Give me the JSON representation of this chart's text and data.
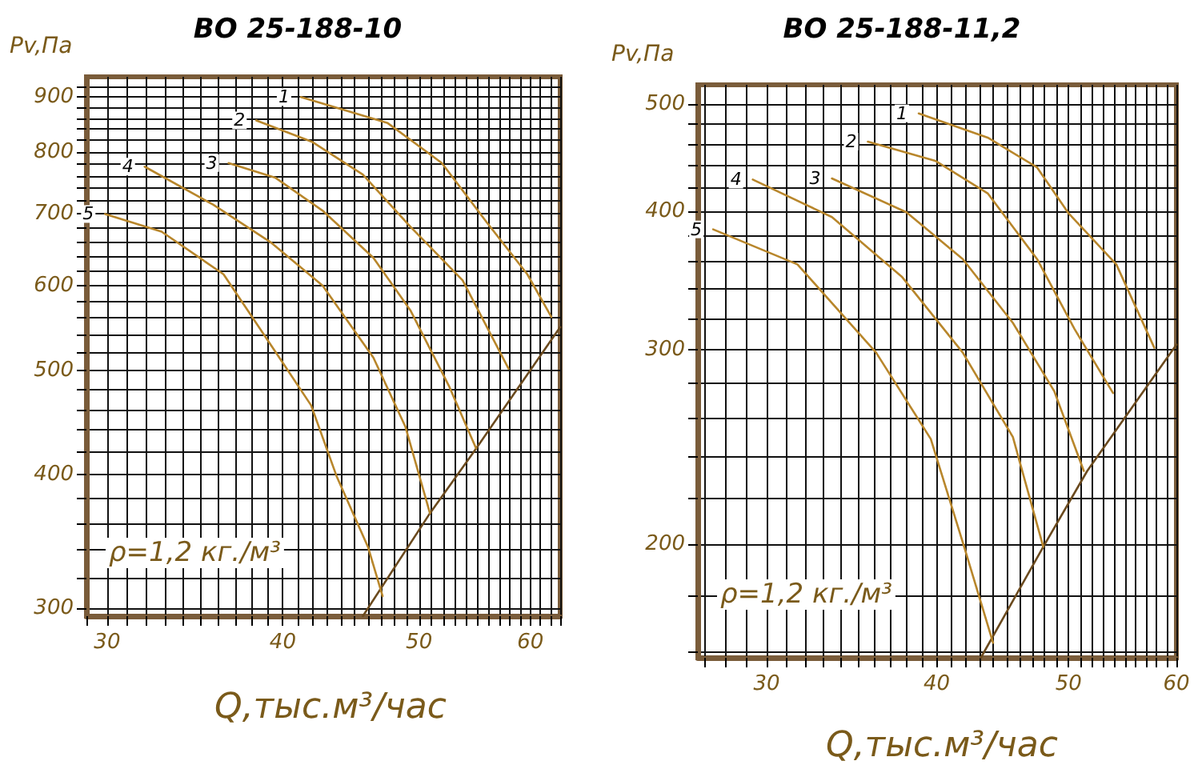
{
  "chart_data": [
    {
      "type": "line",
      "title": "ВО 25-188-10",
      "xlabel": "Q,тыс.м³/час",
      "ylabel": "Pv,Па",
      "log": "xy",
      "grid": true,
      "legend": false,
      "marker": "none",
      "line_style": "solid",
      "annotations": [
        "ρ=1,2 кг./м³"
      ],
      "xlim": [
        29,
        63
      ],
      "ylim": [
        295,
        940
      ],
      "xticks": [
        {
          "value": 29,
          "label": null
        },
        30,
        {
          "value": 31,
          "label": null
        },
        {
          "value": 32,
          "label": null
        },
        {
          "value": 33,
          "label": null
        },
        {
          "value": 34,
          "label": null
        },
        {
          "value": 35,
          "label": null
        },
        {
          "value": 36,
          "label": null
        },
        {
          "value": 37,
          "label": null
        },
        {
          "value": 38,
          "label": null
        },
        {
          "value": 39,
          "label": null
        },
        40,
        {
          "value": 41,
          "label": null
        },
        {
          "value": 42,
          "label": null
        },
        {
          "value": 43,
          "label": null
        },
        {
          "value": 44,
          "label": null
        },
        {
          "value": 45,
          "label": null
        },
        {
          "value": 46,
          "label": null
        },
        {
          "value": 47,
          "label": null
        },
        {
          "value": 48,
          "label": null
        },
        {
          "value": 49,
          "label": null
        },
        50,
        {
          "value": 51,
          "label": null
        },
        {
          "value": 52,
          "label": null
        },
        {
          "value": 53,
          "label": null
        },
        {
          "value": 54,
          "label": null
        },
        {
          "value": 55,
          "label": null
        },
        {
          "value": 56,
          "label": null
        },
        {
          "value": 57,
          "label": null
        },
        {
          "value": 58,
          "label": null
        },
        {
          "value": 59,
          "label": null
        },
        60,
        {
          "value": 61,
          "label": null
        },
        {
          "value": 62,
          "label": null
        },
        {
          "value": 63,
          "label": null
        }
      ],
      "yticks": [
        300,
        {
          "value": 320,
          "label": null
        },
        {
          "value": 340,
          "label": null
        },
        {
          "value": 360,
          "label": null
        },
        {
          "value": 380,
          "label": null
        },
        400,
        {
          "value": 420,
          "label": null
        },
        {
          "value": 440,
          "label": null
        },
        {
          "value": 460,
          "label": null
        },
        {
          "value": 480,
          "label": null
        },
        500,
        {
          "value": 520,
          "label": null
        },
        {
          "value": 540,
          "label": null
        },
        {
          "value": 560,
          "label": null
        },
        {
          "value": 580,
          "label": null
        },
        600,
        {
          "value": 620,
          "label": null
        },
        {
          "value": 640,
          "label": null
        },
        {
          "value": 660,
          "label": null
        },
        {
          "value": 680,
          "label": null
        },
        700,
        {
          "value": 720,
          "label": null
        },
        {
          "value": 740,
          "label": null
        },
        {
          "value": 760,
          "label": null
        },
        {
          "value": 780,
          "label": null
        },
        800,
        {
          "value": 820,
          "label": null
        },
        {
          "value": 840,
          "label": null
        },
        {
          "value": 860,
          "label": null
        },
        {
          "value": 880,
          "label": null
        },
        900,
        {
          "value": 920,
          "label": null
        }
      ],
      "series": [
        {
          "name": "1",
          "color": "#b8862b",
          "x": [
            41.2,
            47.5,
            51.9,
            55.8,
            59.7,
            62.1
          ],
          "values": [
            900,
            851,
            781,
            689,
            615,
            561
          ]
        },
        {
          "name": "2",
          "color": "#b8862b",
          "x": [
            38.3,
            42.0,
            45.6,
            49.3,
            53.7,
            57.9
          ],
          "values": [
            856,
            817,
            762,
            681,
            607,
            502
          ]
        },
        {
          "name": "3",
          "color": "#b8862b",
          "x": [
            36.6,
            39.5,
            42.7,
            46.4,
            49.3,
            52.5,
            54.9
          ],
          "values": [
            781,
            757,
            705,
            637,
            569,
            484,
            423
          ]
        },
        {
          "name": "4",
          "color": "#b8862b",
          "x": [
            31.9,
            35.7,
            39.2,
            42.7,
            46.4,
            48.9,
            50.9
          ],
          "values": [
            775,
            714,
            659,
            600,
            514,
            443,
            368
          ]
        },
        {
          "name": "5",
          "color": "#b8862b",
          "x": [
            29.9,
            32.8,
            36.3,
            40.1,
            41.9,
            43.7,
            46.0,
            47.1
          ],
          "values": [
            700,
            674,
            615,
            506,
            464,
            398,
            342,
            308
          ]
        },
        {
          "color": "#6b4a1e",
          "x": [
            45.6,
            50.9,
            54.9,
            63
          ],
          "values": [
            295,
            368,
            423,
            549
          ]
        }
      ]
    },
    {
      "type": "line",
      "title": "ВО 25-188-11,2",
      "xlabel": "Q,тыс.м³/час",
      "ylabel": "Pv,Па",
      "log": "xy",
      "grid": true,
      "legend": false,
      "marker": "none",
      "line_style": "solid",
      "annotations": [
        "ρ=1,2 кг./м³"
      ],
      "xlim": [
        26.7,
        60
      ],
      "ylim": [
        158,
        520
      ],
      "xticks": [
        {
          "value": 27,
          "label": null
        },
        {
          "value": 28,
          "label": null
        },
        {
          "value": 29,
          "label": null
        },
        30,
        {
          "value": 31,
          "label": null
        },
        {
          "value": 32,
          "label": null
        },
        {
          "value": 33,
          "label": null
        },
        {
          "value": 34,
          "label": null
        },
        {
          "value": 35,
          "label": null
        },
        {
          "value": 36,
          "label": null
        },
        {
          "value": 37,
          "label": null
        },
        {
          "value": 38,
          "label": null
        },
        {
          "value": 39,
          "label": null
        },
        40,
        {
          "value": 41,
          "label": null
        },
        {
          "value": 42,
          "label": null
        },
        {
          "value": 43,
          "label": null
        },
        {
          "value": 44,
          "label": null
        },
        {
          "value": 45,
          "label": null
        },
        {
          "value": 46,
          "label": null
        },
        {
          "value": 47,
          "label": null
        },
        {
          "value": 48,
          "label": null
        },
        {
          "value": 49,
          "label": null
        },
        50,
        {
          "value": 51,
          "label": null
        },
        {
          "value": 52,
          "label": null
        },
        {
          "value": 53,
          "label": null
        },
        {
          "value": 54,
          "label": null
        },
        {
          "value": 55,
          "label": null
        },
        {
          "value": 56,
          "label": null
        },
        {
          "value": 57,
          "label": null
        },
        {
          "value": 58,
          "label": null
        },
        {
          "value": 59,
          "label": null
        },
        60
      ],
      "yticks": [
        {
          "value": 160,
          "label": null
        },
        {
          "value": 180,
          "label": null
        },
        200,
        {
          "value": 220,
          "label": null
        },
        {
          "value": 240,
          "label": null
        },
        {
          "value": 260,
          "label": null
        },
        {
          "value": 280,
          "label": null
        },
        300,
        {
          "value": 320,
          "label": null
        },
        {
          "value": 340,
          "label": null
        },
        {
          "value": 360,
          "label": null
        },
        {
          "value": 380,
          "label": null
        },
        400,
        {
          "value": 420,
          "label": null
        },
        {
          "value": 440,
          "label": null
        },
        {
          "value": 460,
          "label": null
        },
        {
          "value": 480,
          "label": null
        },
        500
      ],
      "series": [
        {
          "name": "1",
          "color": "#b8862b",
          "x": [
            38.8,
            43.6,
            47.4,
            50.0,
            54.2,
            57.8
          ],
          "values": [
            490,
            466,
            438,
            398,
            358,
            301
          ]
        },
        {
          "name": "2",
          "color": "#b8862b",
          "x": [
            35.6,
            39.9,
            43.6,
            47.4,
            50.5,
            53.9
          ],
          "values": [
            462,
            444,
            415,
            362,
            313,
            274
          ]
        },
        {
          "name": "3",
          "color": "#b8862b",
          "x": [
            33.5,
            38.0,
            41.8,
            45.5,
            48.8,
            51.3
          ],
          "values": [
            428,
            399,
            362,
            317,
            275,
            233
          ]
        },
        {
          "name": "4",
          "color": "#b8862b",
          "x": [
            29.3,
            33.5,
            37.7,
            41.8,
            45.5,
            47.9
          ],
          "values": [
            427,
            395,
            349,
            298,
            250,
            199
          ]
        },
        {
          "name": "5",
          "color": "#b8862b",
          "x": [
            27.4,
            31.6,
            36.1,
            39.6,
            41.9,
            44.0
          ],
          "values": [
            385,
            358,
            298,
            249,
            199,
            163
          ]
        },
        {
          "color": "#6b4a1e",
          "x": [
            43.1,
            47.9,
            51.6,
            60
          ],
          "values": [
            158,
            199,
            233,
            303
          ]
        }
      ]
    }
  ]
}
